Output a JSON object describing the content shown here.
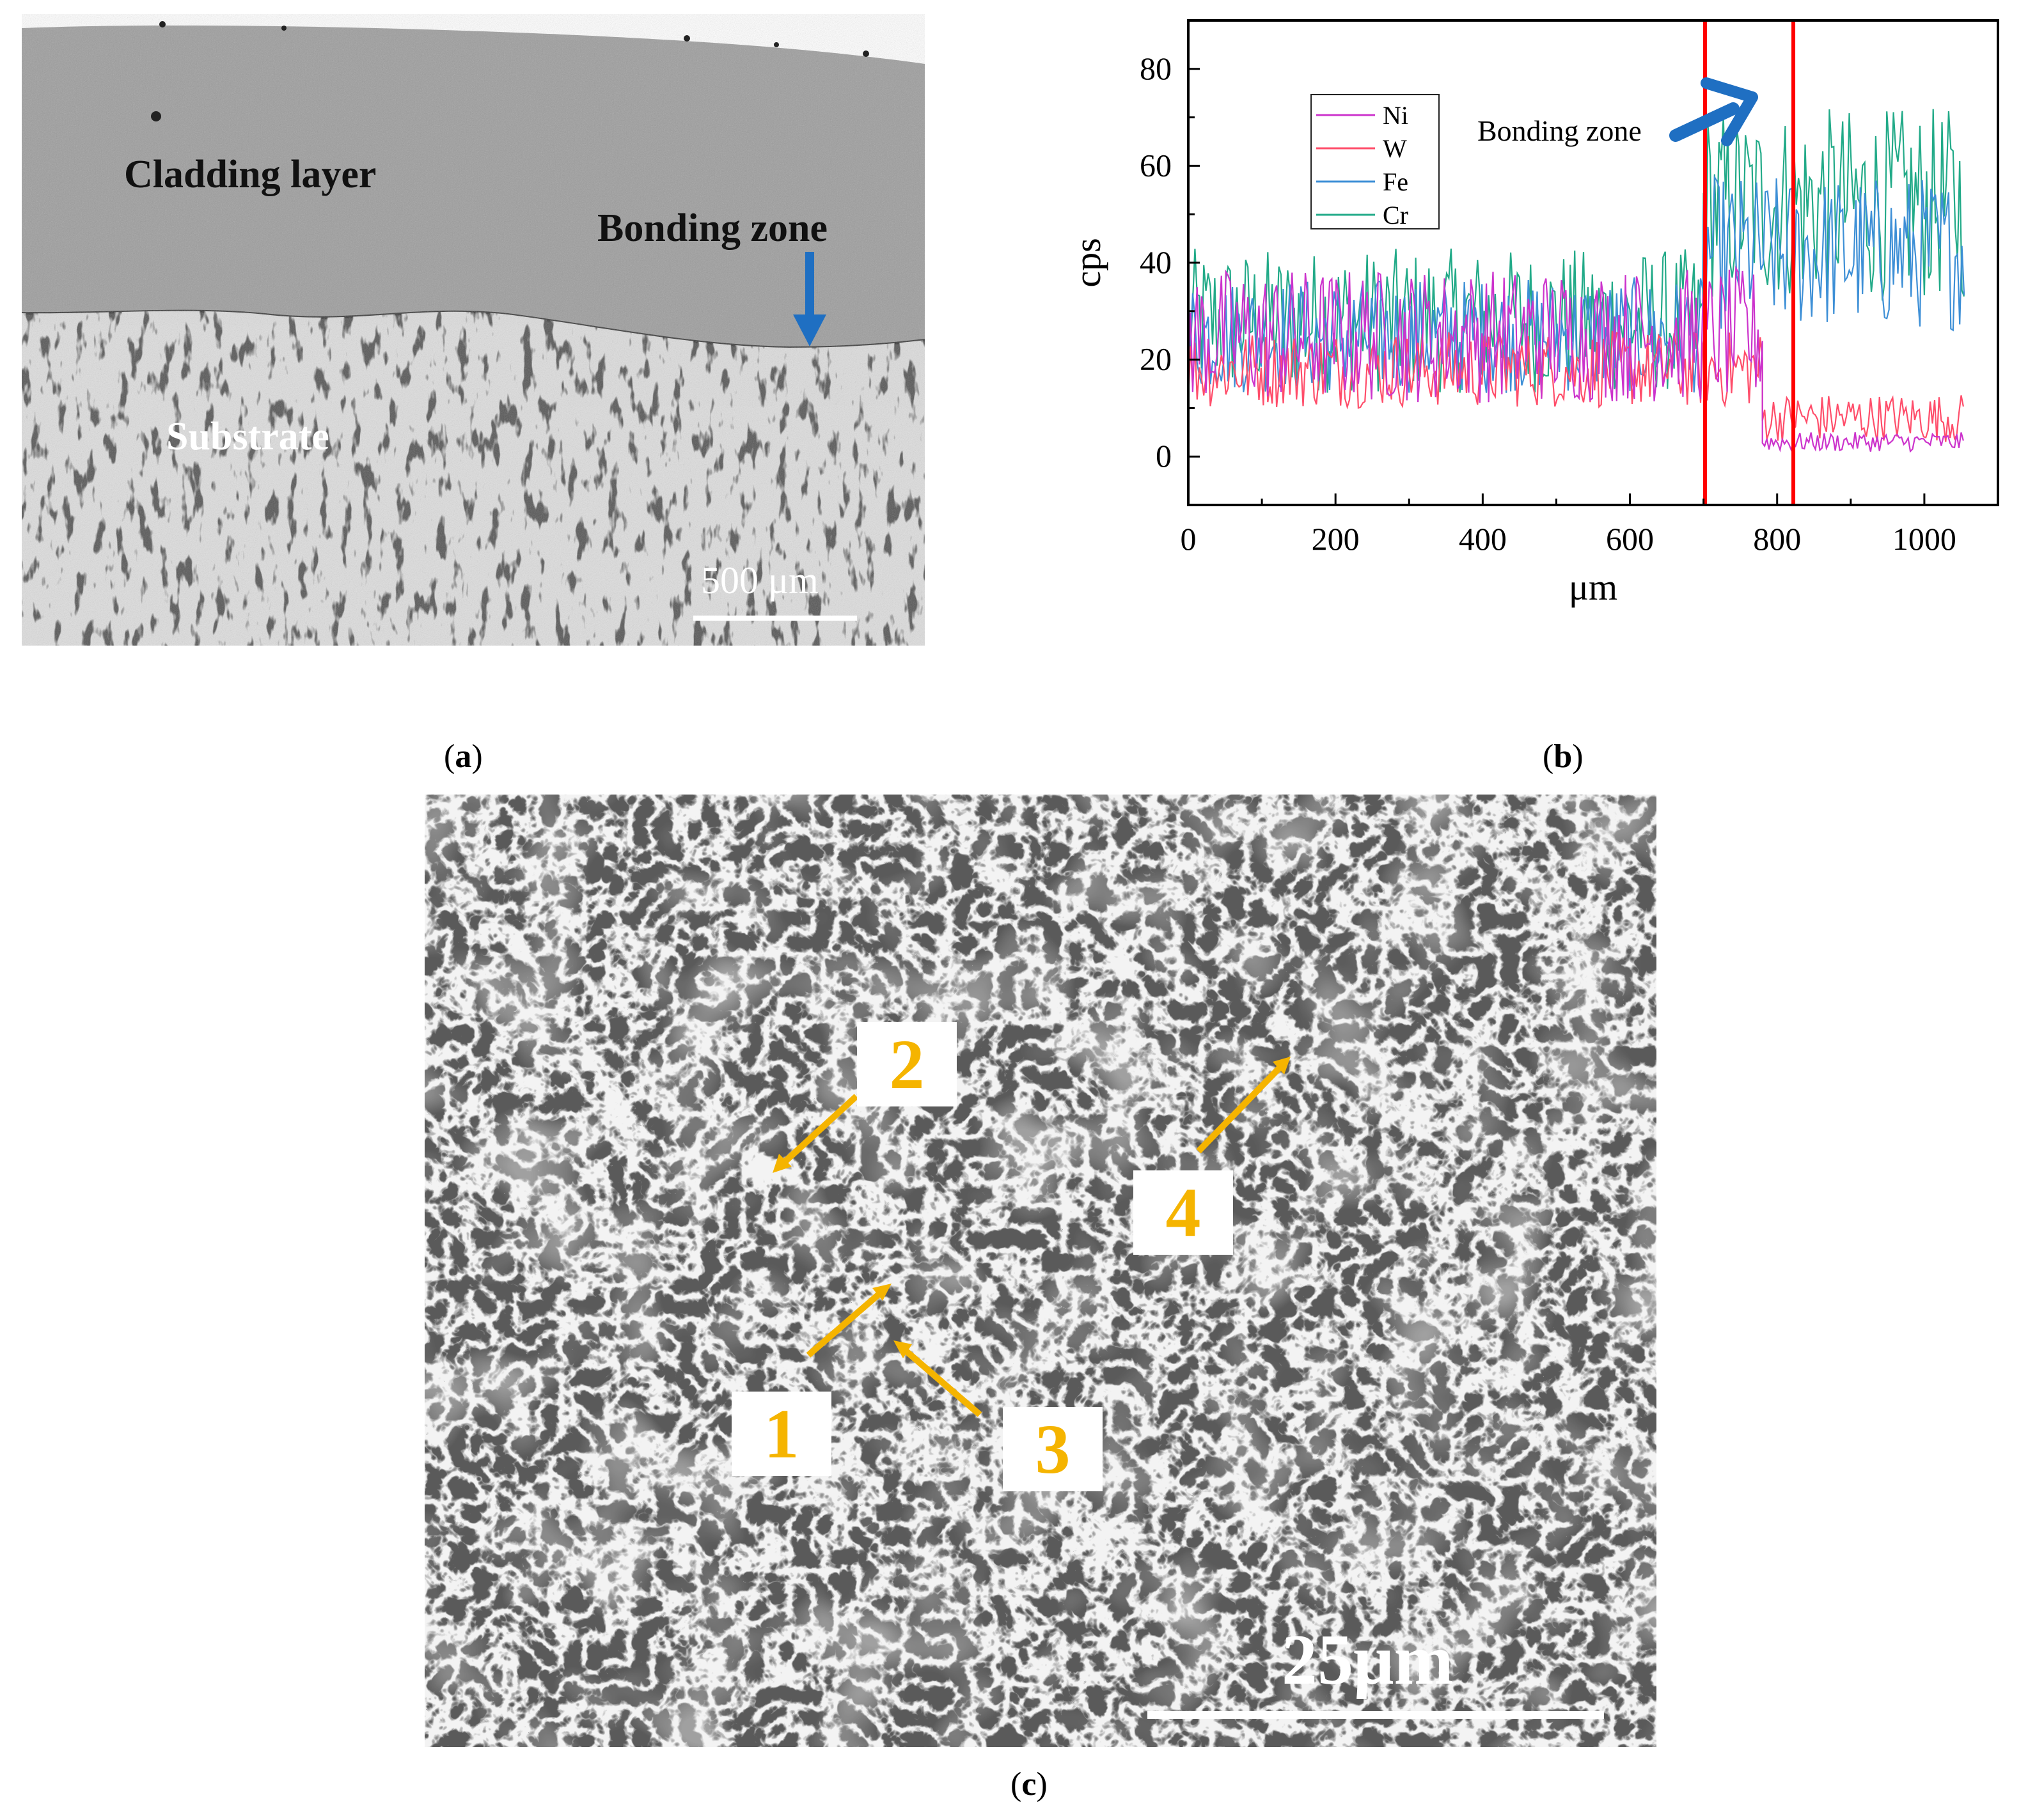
{
  "panel_a": {
    "label_cladding": "Cladding layer",
    "label_bonding": "Bonding zone",
    "label_substrate": "Substrate",
    "scale_bar": "500 μm"
  },
  "panel_b": {
    "chart_data": {
      "type": "line",
      "xlabel": "μm",
      "ylabel": "cps",
      "xlim": [
        0,
        1100
      ],
      "ylim": [
        -10,
        90
      ],
      "xticks": [
        0,
        200,
        400,
        600,
        800,
        1000
      ],
      "yticks": [
        0,
        20,
        40,
        60,
        80
      ],
      "grid": false,
      "legend_position": "upper-left",
      "series": [
        {
          "name": "Ni",
          "color": "#cc33cc",
          "segments": [
            {
              "x_from": 0,
              "x_to": 780,
              "mean": 25,
              "amplitude": 14
            },
            {
              "x_from": 780,
              "x_to": 1055,
              "mean": 3,
              "amplitude": 2
            }
          ]
        },
        {
          "name": "W",
          "color": "#ff4d6a",
          "segments": [
            {
              "x_from": 0,
              "x_to": 780,
              "mean": 18,
              "amplitude": 8
            },
            {
              "x_from": 780,
              "x_to": 1055,
              "mean": 8,
              "amplitude": 5
            }
          ]
        },
        {
          "name": "Fe",
          "color": "#3d8fd6",
          "segments": [
            {
              "x_from": 0,
              "x_to": 700,
              "mean": 25,
              "amplitude": 12
            },
            {
              "x_from": 700,
              "x_to": 1055,
              "mean": 42,
              "amplitude": 16
            }
          ]
        },
        {
          "name": "Cr",
          "color": "#22aa88",
          "segments": [
            {
              "x_from": 0,
              "x_to": 700,
              "mean": 28,
              "amplitude": 15
            },
            {
              "x_from": 700,
              "x_to": 1055,
              "mean": 52,
              "amplitude": 20
            }
          ]
        }
      ],
      "vertical_lines": [
        {
          "x": 702,
          "color": "#ff0000"
        },
        {
          "x": 822,
          "color": "#ff0000"
        }
      ],
      "annotation": "Bonding zone"
    }
  },
  "panel_c": {
    "markers": [
      "1",
      "2",
      "3",
      "4"
    ],
    "scale_bar": "25μm"
  },
  "captions": {
    "a": "a",
    "b": "b",
    "c": "c"
  }
}
